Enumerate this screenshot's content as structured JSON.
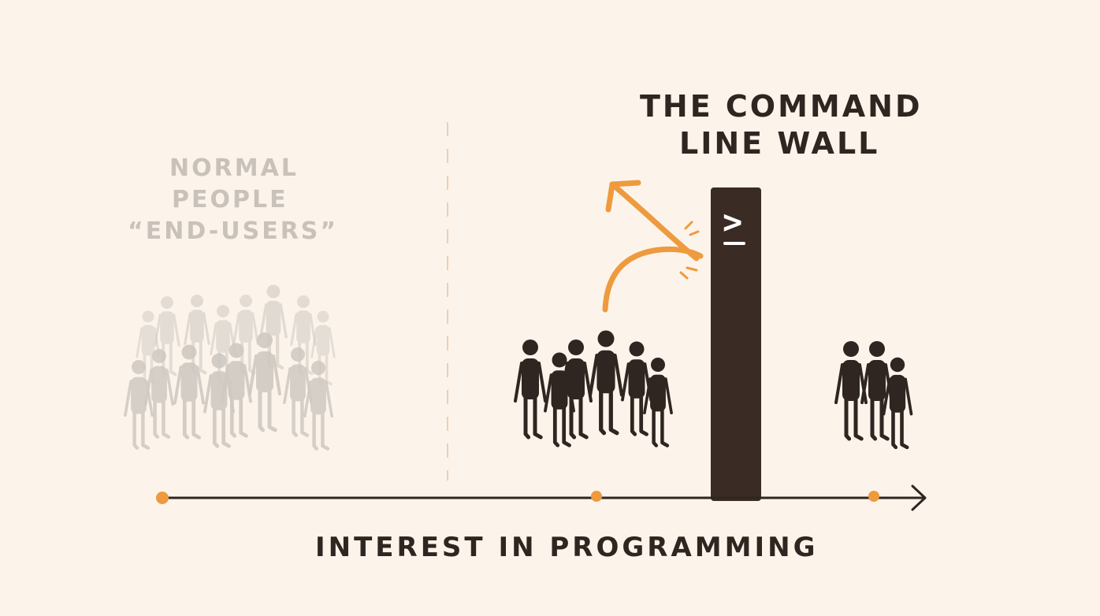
{
  "title": {
    "line1": "THE COMMAND",
    "line2": "LINE WALL"
  },
  "group_label": {
    "line1": "NORMAL",
    "line2": "PEOPLE",
    "line3": "“END-USERS”"
  },
  "axis_label": "INTEREST IN PROGRAMMING",
  "prompt_glyph": ">",
  "colors": {
    "background": "#fcf4ea",
    "ink": "#2f2521",
    "wall": "#3b2b25",
    "accent": "#ee9a3e",
    "faded_people": "#cfc9c3"
  },
  "icons": [
    "people-crowd-faded",
    "people-crowd-dark",
    "wall-terminal",
    "bounce-arrow"
  ]
}
